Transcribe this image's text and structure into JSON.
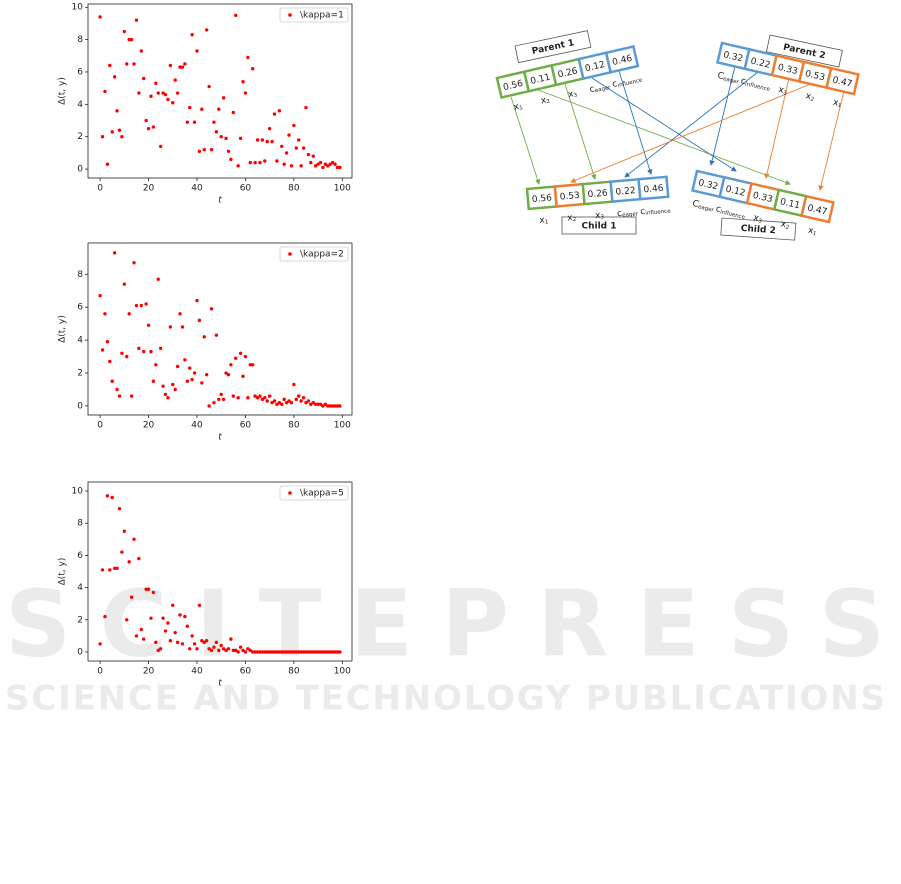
{
  "chart_data": [
    {
      "type": "scatter",
      "legend": "upper right",
      "color": "#ff0000",
      "ylabel": "Δ(t, y)",
      "xlabel": "t",
      "series": [
        {
          "name": "\\kappa=1",
          "color": "#ff0000",
          "x": [
            0,
            1,
            2,
            3,
            4,
            5,
            6,
            7,
            8,
            9,
            10,
            11,
            12,
            13,
            14,
            15,
            16,
            17,
            18,
            19,
            20,
            21,
            22,
            23,
            24,
            25,
            26,
            27,
            28,
            29,
            30,
            31,
            32,
            33,
            34,
            35,
            36,
            37,
            38,
            39,
            40,
            41,
            42,
            43,
            44,
            45,
            46,
            47,
            48,
            49,
            50,
            51,
            52,
            53,
            54,
            55,
            56,
            57,
            58,
            59,
            60,
            61,
            62,
            63,
            64,
            65,
            66,
            67,
            68,
            69,
            70,
            71,
            72,
            73,
            74,
            75,
            76,
            77,
            78,
            79,
            80,
            81,
            82,
            83,
            84,
            85,
            86,
            87,
            88,
            89,
            90,
            91,
            92,
            93,
            94,
            95,
            96,
            97,
            98,
            99
          ],
          "values": [
            9.4,
            2.0,
            4.8,
            0.3,
            6.4,
            2.3,
            5.7,
            3.6,
            2.4,
            2.0,
            8.5,
            6.5,
            8.0,
            8.0,
            6.5,
            9.2,
            4.7,
            7.3,
            5.6,
            3.0,
            2.5,
            4.5,
            2.6,
            5.3,
            4.7,
            1.4,
            4.7,
            4.6,
            4.3,
            6.4,
            4.1,
            5.5,
            4.7,
            6.3,
            6.3,
            6.5,
            2.9,
            3.8,
            8.3,
            2.9,
            7.3,
            1.1,
            3.7,
            1.2,
            8.6,
            5.1,
            1.2,
            2.9,
            2.3,
            3.7,
            2.0,
            4.4,
            1.9,
            1.1,
            0.6,
            3.5,
            9.5,
            0.2,
            1.9,
            5.4,
            4.7,
            6.9,
            0.4,
            6.2,
            0.4,
            1.8,
            0.4,
            1.8,
            0.5,
            1.7,
            2.5,
            1.7,
            3.4,
            0.5,
            3.6,
            1.4,
            0.3,
            1.0,
            2.1,
            0.2,
            2.7,
            1.3,
            1.8,
            0.2,
            1.3,
            3.8,
            0.9,
            0.4,
            0.8,
            0.2,
            0.3,
            0.4,
            0.1,
            0.3,
            0.2,
            0.3,
            0.4,
            0.3,
            0.1,
            0.1
          ]
        }
      ],
      "xlim": [
        -5,
        104
      ],
      "xticks": [
        0,
        20,
        40,
        60,
        80,
        100
      ],
      "ylim": [
        -0.55,
        10.2
      ],
      "yticks": [
        0,
        2,
        4,
        6,
        8,
        10
      ]
    },
    {
      "type": "scatter",
      "legend": "upper right",
      "color": "#ff0000",
      "ylabel": "Δ(t, y)",
      "xlabel": "t",
      "series": [
        {
          "name": "\\kappa=2",
          "color": "#ff0000",
          "x": [
            0,
            1,
            2,
            3,
            4,
            5,
            6,
            7,
            8,
            9,
            10,
            11,
            12,
            13,
            14,
            15,
            16,
            17,
            18,
            19,
            20,
            21,
            22,
            23,
            24,
            25,
            26,
            27,
            28,
            29,
            30,
            31,
            32,
            33,
            34,
            35,
            36,
            37,
            38,
            39,
            40,
            41,
            42,
            43,
            44,
            45,
            46,
            47,
            48,
            49,
            50,
            51,
            52,
            53,
            54,
            55,
            56,
            57,
            58,
            59,
            60,
            61,
            62,
            63,
            64,
            65,
            66,
            67,
            68,
            69,
            70,
            71,
            72,
            73,
            74,
            75,
            76,
            77,
            78,
            79,
            80,
            81,
            82,
            83,
            84,
            85,
            86,
            87,
            88,
            89,
            90,
            91,
            92,
            93,
            94,
            95,
            96,
            97,
            98,
            99
          ],
          "values": [
            6.7,
            3.4,
            5.6,
            3.9,
            2.7,
            1.5,
            9.3,
            1.0,
            0.6,
            3.2,
            7.4,
            3.0,
            5.6,
            0.6,
            8.7,
            6.1,
            3.5,
            6.1,
            3.3,
            6.2,
            4.9,
            3.3,
            1.5,
            2.5,
            7.7,
            3.5,
            1.2,
            0.7,
            0.5,
            4.8,
            1.3,
            1.0,
            2.4,
            5.6,
            4.8,
            2.8,
            1.5,
            2.3,
            1.6,
            2.0,
            6.4,
            5.2,
            1.4,
            4.2,
            1.9,
            0.0,
            5.9,
            0.2,
            4.3,
            0.4,
            0.7,
            0.4,
            2.0,
            1.9,
            2.5,
            0.6,
            2.9,
            0.5,
            3.2,
            1.8,
            3.0,
            0.5,
            2.5,
            2.5,
            0.6,
            0.5,
            0.6,
            0.4,
            0.5,
            0.3,
            0.6,
            0.2,
            0.3,
            0.1,
            0.2,
            0.1,
            0.4,
            0.2,
            0.3,
            0.2,
            1.3,
            0.4,
            0.6,
            0.3,
            0.5,
            0.2,
            0.3,
            0.1,
            0.2,
            0.1,
            0.1,
            0.1,
            0.0,
            0.1,
            0.0,
            0.0,
            0.0,
            0.0,
            0.0,
            0.0
          ]
        }
      ],
      "xlim": [
        -5,
        104
      ],
      "xticks": [
        0,
        20,
        40,
        60,
        80,
        100
      ],
      "ylim": [
        -0.55,
        9.9
      ],
      "yticks": [
        0,
        2,
        4,
        6,
        8
      ]
    },
    {
      "type": "scatter",
      "legend": "upper right",
      "color": "#ff0000",
      "ylabel": "Δ(t, y)",
      "xlabel": "t",
      "series": [
        {
          "name": "\\kappa=5",
          "color": "#ff0000",
          "x": [
            0,
            1,
            2,
            3,
            4,
            5,
            6,
            7,
            8,
            9,
            10,
            11,
            12,
            13,
            14,
            15,
            16,
            17,
            18,
            19,
            20,
            21,
            22,
            23,
            24,
            25,
            26,
            27,
            28,
            29,
            30,
            31,
            32,
            33,
            34,
            35,
            36,
            37,
            38,
            39,
            40,
            41,
            42,
            43,
            44,
            45,
            46,
            47,
            48,
            49,
            50,
            51,
            52,
            53,
            54,
            55,
            56,
            57,
            58,
            59,
            60,
            61,
            62,
            63,
            64,
            65,
            66,
            67,
            68,
            69,
            70,
            71,
            72,
            73,
            74,
            75,
            76,
            77,
            78,
            79,
            80,
            81,
            82,
            83,
            84,
            85,
            86,
            87,
            88,
            89,
            90,
            91,
            92,
            93,
            94,
            95,
            96,
            97,
            98,
            99
          ],
          "values": [
            0.5,
            5.1,
            2.2,
            9.7,
            5.1,
            9.6,
            5.2,
            5.2,
            8.9,
            6.2,
            7.5,
            2.0,
            5.6,
            3.4,
            7.0,
            1.0,
            5.8,
            1.4,
            0.8,
            3.9,
            3.9,
            2.1,
            3.7,
            0.6,
            0.1,
            0.2,
            2.1,
            1.3,
            1.8,
            0.7,
            2.9,
            1.2,
            0.6,
            2.3,
            0.5,
            2.2,
            1.6,
            0.2,
            1.0,
            0.5,
            0.2,
            2.9,
            0.7,
            0.6,
            0.7,
            0.2,
            0.1,
            0.3,
            0.6,
            0.1,
            0.4,
            0.2,
            0.1,
            0.2,
            0.8,
            0.1,
            0.1,
            0.0,
            0.3,
            0.1,
            0.0,
            0.2,
            0.1,
            0,
            0,
            0,
            0,
            0,
            0,
            0,
            0,
            0,
            0,
            0,
            0,
            0,
            0,
            0,
            0,
            0,
            0,
            0,
            0,
            0,
            0,
            0,
            0,
            0,
            0,
            0,
            0,
            0,
            0,
            0,
            0,
            0,
            0,
            0,
            0,
            0
          ]
        }
      ],
      "xlim": [
        -5,
        104
      ],
      "xticks": [
        0,
        20,
        40,
        60,
        80,
        100
      ],
      "ylim": [
        -0.56,
        10.56
      ],
      "yticks": [
        0,
        2,
        4,
        6,
        8,
        10
      ]
    }
  ],
  "diagram": {
    "rows": [
      {
        "title": "Parent 1",
        "cells": [
          {
            "value": 0.56,
            "color": "#70ad47"
          },
          {
            "value": 0.11,
            "color": "#70ad47"
          },
          {
            "value": 0.26,
            "color": "#70ad47"
          },
          {
            "value": 0.12,
            "color": "#5b9bd5"
          },
          {
            "value": 0.46,
            "color": "#5b9bd5"
          }
        ],
        "labels": [
          {
            "base": "x",
            "sub": "1"
          },
          {
            "base": "x",
            "sub": "2"
          },
          {
            "base": "x",
            "sub": "3"
          },
          {
            "base": "c",
            "sub": "eager"
          },
          {
            "base": "c",
            "sub": "influence"
          }
        ]
      },
      {
        "title": "Parent 2",
        "cells": [
          {
            "value": 0.32,
            "color": "#5b9bd5"
          },
          {
            "value": 0.22,
            "color": "#5b9bd5"
          },
          {
            "value": 0.33,
            "color": "#ed7d31"
          },
          {
            "value": 0.53,
            "color": "#ed7d31"
          },
          {
            "value": 0.47,
            "color": "#ed7d31"
          }
        ],
        "labels": [
          {
            "base": "C",
            "sub": "eager"
          },
          {
            "base": "c",
            "sub": "influence"
          },
          {
            "base": "x",
            "sub": "3"
          },
          {
            "base": "x",
            "sub": "2"
          },
          {
            "base": "x",
            "sub": "1"
          }
        ]
      },
      {
        "title": "Child 1",
        "cells": [
          {
            "value": 0.56,
            "color": "#70ad47"
          },
          {
            "value": 0.53,
            "color": "#ed7d31"
          },
          {
            "value": 0.26,
            "color": "#70ad47"
          },
          {
            "value": 0.22,
            "color": "#5b9bd5"
          },
          {
            "value": 0.46,
            "color": "#5b9bd5"
          }
        ],
        "labels": [
          {
            "base": "x",
            "sub": "1"
          },
          {
            "base": "x",
            "sub": "2"
          },
          {
            "base": "x",
            "sub": "3"
          },
          {
            "base": "c",
            "sub": "eager"
          },
          {
            "base": "c",
            "sub": "influence"
          }
        ]
      },
      {
        "title": "Child 2",
        "cells": [
          {
            "value": 0.32,
            "color": "#5b9bd5"
          },
          {
            "value": 0.12,
            "color": "#5b9bd5"
          },
          {
            "value": 0.33,
            "color": "#ed7d31"
          },
          {
            "value": 0.11,
            "color": "#70ad47"
          },
          {
            "value": 0.47,
            "color": "#ed7d31"
          }
        ],
        "labels": [
          {
            "base": "C",
            "sub": "eager"
          },
          {
            "base": "c",
            "sub": "influence"
          },
          {
            "base": "x",
            "sub": "3"
          },
          {
            "base": "x",
            "sub": "2"
          },
          {
            "base": "x",
            "sub": "1"
          }
        ]
      }
    ]
  },
  "watermark": {
    "title": "SCITEPRESS",
    "subtitle": "SCIENCE AND TECHNOLOGY PUBLICATIONS"
  }
}
